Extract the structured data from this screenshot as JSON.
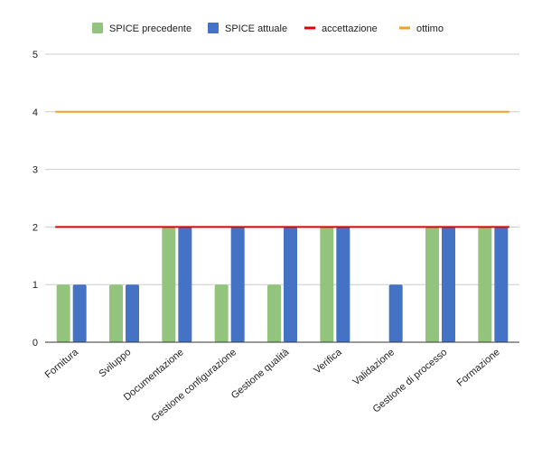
{
  "chart_data": {
    "type": "bar",
    "categories": [
      "Fornitura",
      "Sviluppo",
      "Documentazione",
      "Gestione configurazione",
      "Gestione qualità",
      "Verifica",
      "Validazione",
      "Gestione di processo",
      "Formazione"
    ],
    "series": [
      {
        "name": "SPICE precedente",
        "color": "#93c47d",
        "values": [
          1,
          1,
          2,
          1,
          1,
          2,
          0,
          2,
          2
        ]
      },
      {
        "name": "SPICE attuale",
        "color": "#4472c4",
        "values": [
          1,
          1,
          2,
          2,
          2,
          2,
          1,
          2,
          2
        ]
      }
    ],
    "reference_lines": [
      {
        "name": "accettazione",
        "color": "#e00000",
        "value": 2
      },
      {
        "name": "ottimo",
        "color": "#f4a11d",
        "value": 4
      }
    ],
    "ylim": [
      0,
      5
    ],
    "yticks": [
      "0",
      "1",
      "2",
      "3",
      "4",
      "5"
    ],
    "grid": true,
    "legend_position": "top-center"
  }
}
